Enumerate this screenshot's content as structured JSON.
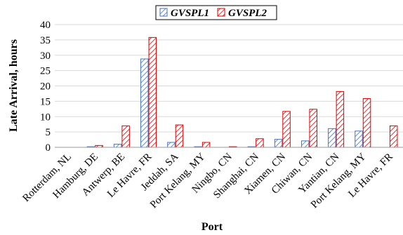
{
  "chart_data": {
    "type": "bar",
    "title": "",
    "xlabel": "Port",
    "ylabel": "Late Arrival, hours",
    "ylim": [
      0,
      40
    ],
    "yticks": [
      0,
      5,
      10,
      15,
      20,
      25,
      30,
      35,
      40
    ],
    "grid": true,
    "legend_position": "top-center",
    "categories": [
      "Rotterdam, NL",
      "Hamburg, DE",
      "Antwerp, BE",
      "Le Havre, FR",
      "Jeddah, SA",
      "Port Kelang, MY",
      "Ningbo, CN",
      "Shanghai, CN",
      "Xiamen, CN",
      "Chiwan, CN",
      "Yantian, CN",
      "Port Kelang, MY",
      "Le Havre, FR"
    ],
    "series": [
      {
        "name": "GVSPL1",
        "color": "#4472c4",
        "pattern": "diagonal-hatch-blue",
        "values": [
          0,
          0.2,
          1.0,
          28.8,
          1.6,
          0.2,
          0,
          0.2,
          2.6,
          2.1,
          6.1,
          5.3,
          0
        ]
      },
      {
        "name": "GVSPL2",
        "color": "#e00000",
        "pattern": "diagonal-hatch-red",
        "values": [
          0,
          0.6,
          7.0,
          35.8,
          7.3,
          1.6,
          0.2,
          2.8,
          11.7,
          12.4,
          18.2,
          15.9,
          7.0
        ]
      }
    ]
  }
}
